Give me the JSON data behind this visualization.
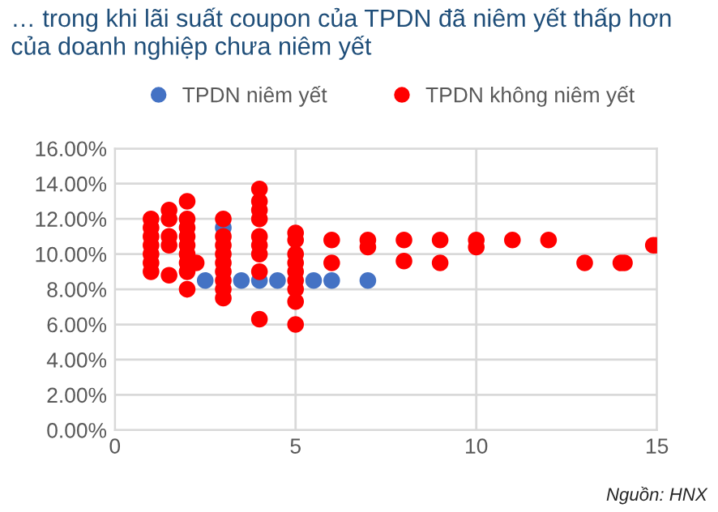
{
  "chart_data": {
    "type": "scatter",
    "title": "… trong khi lãi suất coupon của TPDN đã niêm yết thấp hơn của doanh nghiệp chưa niêm yết",
    "annotations": [
      "Nguồn: HNX"
    ],
    "series": [
      {
        "name": "TPDN niêm yết",
        "color": "#4472c4",
        "x": [
          2.5,
          3.5,
          4,
          4.5,
          5.5,
          6,
          7,
          3
        ],
        "values": [
          8.5,
          8.5,
          8.5,
          8.5,
          8.5,
          8.5,
          8.5,
          11.5
        ]
      },
      {
        "name": "TPDN không niêm yết",
        "color": "#ff0000",
        "x": [
          1,
          1,
          1,
          1,
          1,
          1,
          1,
          1.5,
          1.5,
          1.5,
          1.5,
          1.5,
          2,
          2,
          2,
          2,
          2,
          2,
          2,
          2,
          2,
          2.25,
          3,
          3,
          3,
          3,
          3,
          3,
          3,
          3,
          3,
          4,
          4,
          4,
          4,
          4,
          4,
          4,
          4,
          4,
          5,
          5,
          5,
          5,
          5,
          5,
          5,
          5,
          5,
          6,
          6,
          7,
          7,
          8,
          8,
          9,
          9,
          10,
          10,
          11,
          12,
          13,
          14,
          14.1,
          14.9,
          15
        ],
        "values": [
          12.0,
          11.5,
          11.0,
          10.5,
          10.0,
          9.5,
          9.0,
          12.5,
          12.0,
          11.0,
          10.5,
          8.8,
          13.0,
          12.0,
          11.5,
          11.0,
          10.5,
          10.0,
          9.5,
          9.0,
          8.0,
          9.5,
          12.0,
          11.0,
          10.5,
          10.0,
          9.5,
          9.0,
          8.5,
          8.0,
          7.5,
          13.7,
          13.0,
          12.5,
          12.0,
          11.0,
          10.5,
          10.0,
          9.0,
          6.3,
          11.2,
          10.8,
          10.0,
          9.5,
          9.0,
          8.5,
          8.0,
          7.3,
          6.0,
          10.8,
          9.5,
          10.8,
          10.4,
          10.8,
          9.6,
          10.8,
          9.5,
          10.8,
          10.4,
          10.8,
          10.8,
          9.5,
          9.5,
          9.5,
          10.5,
          10.5
        ]
      }
    ],
    "xlim": [
      0,
      15
    ],
    "xticks": [
      0,
      5,
      10,
      15
    ],
    "ylim": [
      0,
      16
    ],
    "yticks": [
      {
        "value": 0,
        "label": "0.00%"
      },
      {
        "value": 2,
        "label": "2.00%"
      },
      {
        "value": 4,
        "label": "4.00%"
      },
      {
        "value": 6,
        "label": "6.00%"
      },
      {
        "value": 8,
        "label": "8.00%"
      },
      {
        "value": 10,
        "label": "10.00%"
      },
      {
        "value": 12,
        "label": "12.00%"
      },
      {
        "value": 14,
        "label": "14.00%"
      },
      {
        "value": 16,
        "label": "16.00%"
      }
    ],
    "grid": true,
    "legend": "top",
    "marker": "circle"
  }
}
